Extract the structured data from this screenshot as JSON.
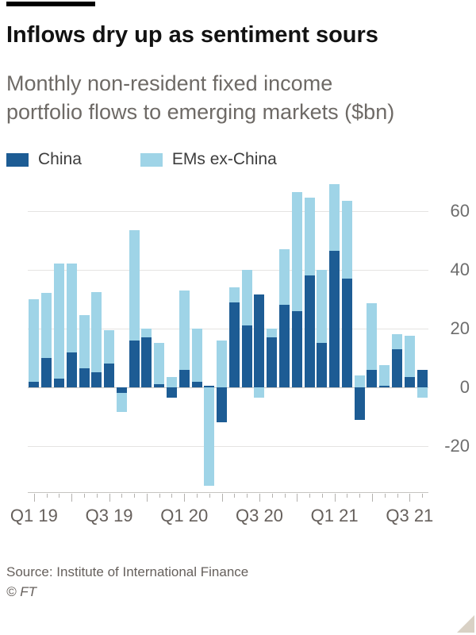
{
  "header": {
    "title": "Inflows dry up as sentiment sours",
    "subtitle": "Monthly non-resident fixed income portfolio flows to emerging markets ($bn)",
    "flag_color": "#000000"
  },
  "legend": [
    {
      "label": "China",
      "color": "#1d5c94"
    },
    {
      "label": "EMs ex-China",
      "color": "#9fd4e7"
    }
  ],
  "chart_data": {
    "type": "bar",
    "stacked": true,
    "title": "Inflows dry up as sentiment sours",
    "subtitle": "Monthly non-resident fixed income portfolio flows to emerging markets ($bn)",
    "categories": [
      "Jan 19",
      "Feb 19",
      "Mar 19",
      "Apr 19",
      "May 19",
      "Jun 19",
      "Jul 19",
      "Aug 19",
      "Sep 19",
      "Oct 19",
      "Nov 19",
      "Dec 19",
      "Jan 20",
      "Feb 20",
      "Mar 20",
      "Apr 20",
      "May 20",
      "Jun 20",
      "Jul 20",
      "Aug 20",
      "Sep 20",
      "Oct 20",
      "Nov 20",
      "Dec 20",
      "Jan 21",
      "Feb 21",
      "Mar 21",
      "Apr 21",
      "May 21",
      "Jun 21",
      "Jul 21",
      "Aug 21"
    ],
    "series": [
      {
        "name": "China",
        "color": "#1d5c94",
        "values": [
          2,
          10,
          3,
          12,
          6.5,
          5,
          8,
          -2,
          16,
          17,
          1,
          -3.5,
          6,
          2,
          0.5,
          -12,
          29,
          21,
          31.5,
          17,
          28,
          26,
          38,
          15,
          46.5,
          37,
          -11,
          6,
          0.5,
          13,
          3.5,
          6
        ]
      },
      {
        "name": "EMs ex-China",
        "color": "#9fd4e7",
        "values": [
          28,
          22,
          39,
          30,
          18,
          27.5,
          11.5,
          -6.5,
          37.5,
          3,
          14,
          3.5,
          27,
          18,
          -33.5,
          16,
          5,
          19,
          -3.5,
          3,
          19,
          40.5,
          26.5,
          25,
          22.5,
          26.5,
          4,
          22.5,
          7,
          5,
          14,
          -3.5
        ]
      }
    ],
    "xlabel": "",
    "ylabel": "",
    "ylim": [
      -36,
      72
    ],
    "yticks": [
      60,
      40,
      20,
      0,
      -20
    ],
    "x_tick_labels": [
      "Q1 19",
      "Q3 19",
      "Q1 20",
      "Q3 20",
      "Q1 21",
      "Q3 21"
    ],
    "x_tick_positions": [
      0,
      6,
      12,
      18,
      24,
      30
    ],
    "grid": "horizontal",
    "legend_position": "top"
  },
  "footer": {
    "source": "Source: Institute of International Finance",
    "copyright": "© FT"
  }
}
